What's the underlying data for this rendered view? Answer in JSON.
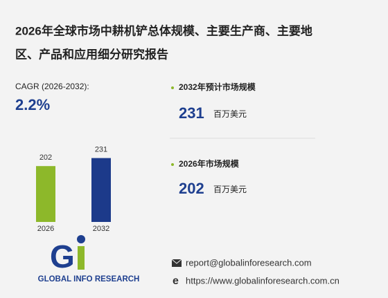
{
  "header": {
    "title_lines": [
      "2026年全球市场中耕机铲总体规模、主要生产商、主要地",
      "区、产品和应用细分研究报告"
    ]
  },
  "cagr": {
    "label": "CAGR",
    "period": "(2026-2032):",
    "value": "2.2%"
  },
  "stats": [
    {
      "label": "2032年预计市场规模",
      "value": 231,
      "unit": "百万美元"
    },
    {
      "label": "2026年市场规模",
      "value": 202,
      "unit": "百万美元"
    }
  ],
  "chart_data": {
    "type": "bar",
    "categories": [
      "2026",
      "2032"
    ],
    "values": [
      202,
      231
    ],
    "series_colors": [
      "#8db82a",
      "#1c3a8a"
    ]
  },
  "footer": {
    "logo_text": "GLOBAL INFO RESEARCH",
    "email": "report@globalinforesearch.com",
    "website": "https://www.globalinforesearch.com.cn"
  }
}
